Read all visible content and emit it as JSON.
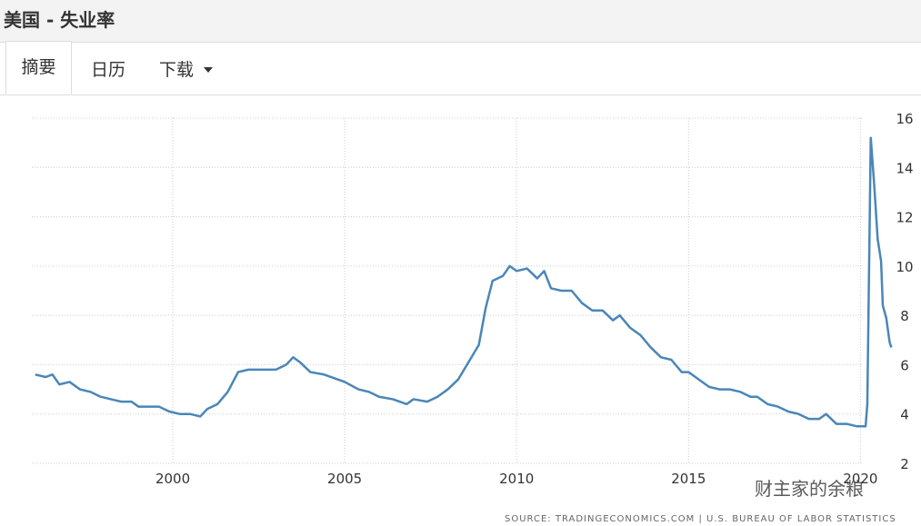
{
  "header": {
    "title": "美国 - 失业率"
  },
  "tabs": [
    "摘要",
    "日历",
    "下载"
  ],
  "chart_data": {
    "type": "line",
    "source": "SOURCE: TRADINGECONOMICS.COM  |  U.S. BUREAU OF LABOR STATISTICS",
    "watermark": "财主家的余粮",
    "x": [
      1996.0,
      1996.3,
      1996.5,
      1996.7,
      1997.0,
      1997.3,
      1997.6,
      1997.9,
      1998.2,
      1998.5,
      1998.8,
      1999.0,
      1999.3,
      1999.6,
      1999.9,
      2000.2,
      2000.5,
      2000.8,
      2001.0,
      2001.3,
      2001.6,
      2001.9,
      2002.2,
      2002.5,
      2002.8,
      2003.0,
      2003.3,
      2003.5,
      2003.7,
      2004.0,
      2004.4,
      2004.8,
      2005.0,
      2005.4,
      2005.7,
      2006.0,
      2006.4,
      2006.8,
      2007.0,
      2007.4,
      2007.7,
      2008.0,
      2008.3,
      2008.6,
      2008.9,
      2009.1,
      2009.3,
      2009.6,
      2009.8,
      2010.0,
      2010.3,
      2010.6,
      2010.8,
      2011.0,
      2011.3,
      2011.6,
      2011.9,
      2012.2,
      2012.5,
      2012.8,
      2013.0,
      2013.3,
      2013.6,
      2013.9,
      2014.2,
      2014.5,
      2014.8,
      2015.0,
      2015.3,
      2015.6,
      2015.9,
      2016.2,
      2016.5,
      2016.8,
      2017.0,
      2017.3,
      2017.6,
      2017.9,
      2018.2,
      2018.5,
      2018.8,
      2019.0,
      2019.3,
      2019.6,
      2019.9,
      2020.15,
      2020.2,
      2020.3,
      2020.4,
      2020.5,
      2020.6,
      2020.65,
      2020.75,
      2020.85,
      2020.9
    ],
    "series": [
      {
        "name": "美国失业率",
        "color": "#4a86b8",
        "values": [
          5.6,
          5.5,
          5.6,
          5.2,
          5.3,
          5.0,
          4.9,
          4.7,
          4.6,
          4.5,
          4.5,
          4.3,
          4.3,
          4.3,
          4.1,
          4.0,
          4.0,
          3.9,
          4.2,
          4.4,
          4.9,
          5.7,
          5.8,
          5.8,
          5.8,
          5.8,
          6.0,
          6.3,
          6.1,
          5.7,
          5.6,
          5.4,
          5.3,
          5.0,
          4.9,
          4.7,
          4.6,
          4.4,
          4.6,
          4.5,
          4.7,
          5.0,
          5.4,
          6.1,
          6.8,
          8.3,
          9.4,
          9.6,
          10.0,
          9.8,
          9.9,
          9.5,
          9.8,
          9.1,
          9.0,
          9.0,
          8.5,
          8.2,
          8.2,
          7.8,
          8.0,
          7.5,
          7.2,
          6.7,
          6.3,
          6.2,
          5.7,
          5.7,
          5.4,
          5.1,
          5.0,
          5.0,
          4.9,
          4.7,
          4.7,
          4.4,
          4.3,
          4.1,
          4.0,
          3.8,
          3.8,
          4.0,
          3.6,
          3.6,
          3.5,
          3.5,
          4.4,
          15.2,
          13.3,
          11.1,
          10.2,
          8.4,
          7.9,
          6.9,
          6.7
        ]
      }
    ],
    "xlim": [
      1995.9,
      2021.1
    ],
    "ylim": [
      2,
      16
    ],
    "xticks": [
      2000,
      2005,
      2010,
      2015,
      2020
    ],
    "yticks": [
      2,
      4,
      6,
      8,
      10,
      12,
      14,
      16
    ],
    "grid": true
  }
}
